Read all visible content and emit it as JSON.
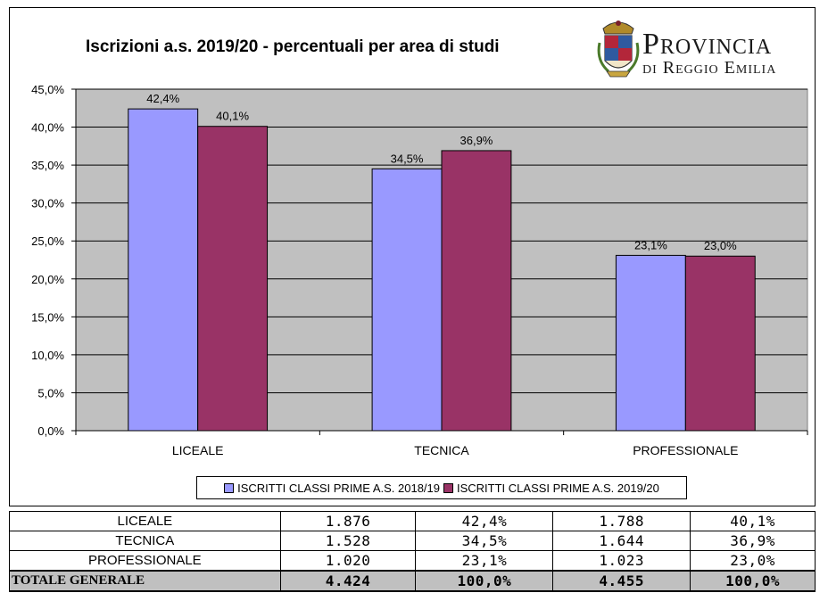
{
  "page": {
    "logo_line1": "Provincia",
    "logo_line2": "di Reggio Emilia"
  },
  "chart_data": {
    "type": "bar",
    "title": "Iscrizioni a.s. 2019/20 - percentuali per area di studi",
    "categories": [
      "LICEALE",
      "TECNICA",
      "PROFESSIONALE"
    ],
    "series": [
      {
        "name": "ISCRITTI CLASSI PRIME A.S. 2018/19",
        "values": [
          42.4,
          34.5,
          23.1
        ],
        "labels": [
          "42,4%",
          "34,5%",
          "23,1%"
        ],
        "color": "#9999ff"
      },
      {
        "name": "ISCRITTI CLASSI PRIME A.S. 2019/20",
        "values": [
          40.1,
          36.9,
          23.0
        ],
        "labels": [
          "40,1%",
          "36,9%",
          "23,0%"
        ],
        "color": "#993366"
      }
    ],
    "ylim": [
      0,
      45
    ],
    "yticks": [
      "0,0%",
      "5,0%",
      "10,0%",
      "15,0%",
      "20,0%",
      "25,0%",
      "30,0%",
      "35,0%",
      "40,0%",
      "45,0%"
    ],
    "grid": true,
    "plot_background": "#c0c0c0",
    "legend_position": "bottom"
  },
  "table": {
    "rows": [
      {
        "label": "LICEALE",
        "c1": "1.876",
        "c2": "42,4%",
        "c3": "1.788",
        "c4": "40,1%"
      },
      {
        "label": "TECNICA",
        "c1": "1.528",
        "c2": "34,5%",
        "c3": "1.644",
        "c4": "36,9%"
      },
      {
        "label": "PROFESSIONALE",
        "c1": "1.020",
        "c2": "23,1%",
        "c3": "1.023",
        "c4": "23,0%"
      }
    ],
    "total": {
      "label": "TOTALE GENERALE",
      "c1": "4.424",
      "c2": "100,0%",
      "c3": "4.455",
      "c4": "100,0%"
    }
  }
}
